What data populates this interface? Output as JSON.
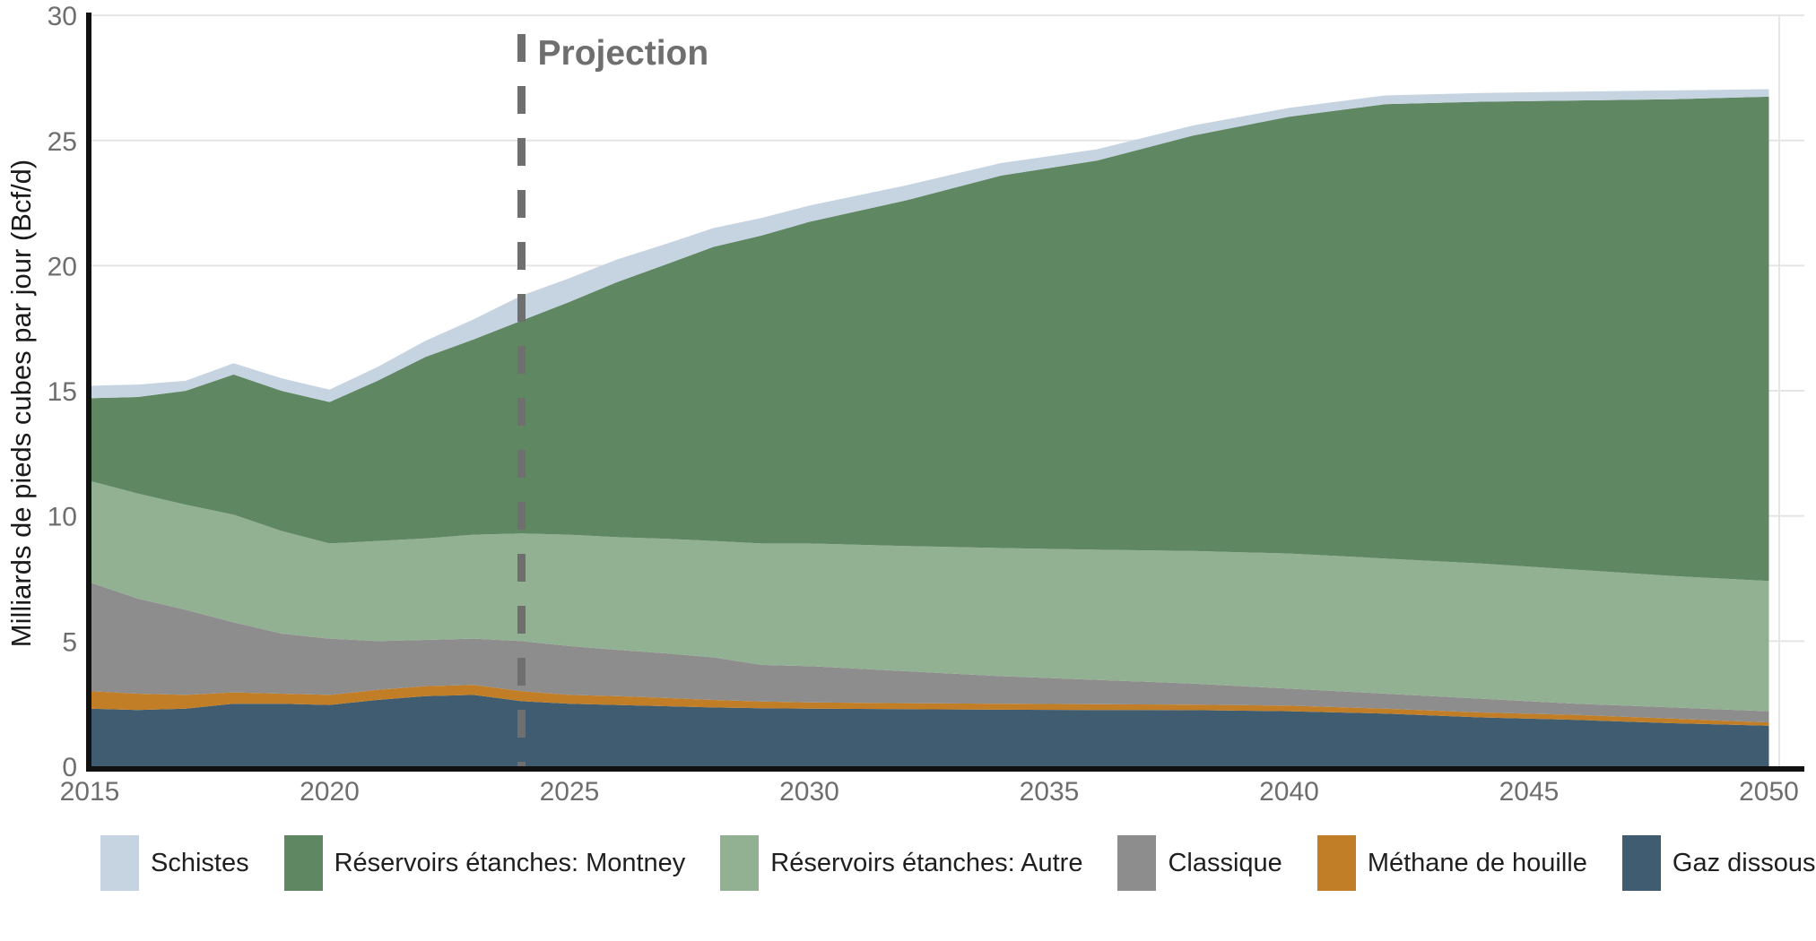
{
  "chart_data": {
    "type": "area",
    "stacked": true,
    "ylabel": "Milliards de pieds cubes par jour (Bcf/d)",
    "ylim": [
      0,
      30
    ],
    "yticks": [
      0,
      5,
      10,
      15,
      20,
      25,
      30
    ],
    "xticks": [
      2015,
      2020,
      2025,
      2030,
      2035,
      2040,
      2045,
      2050
    ],
    "x_range": [
      2015,
      2050
    ],
    "grid": "horizontal-light",
    "legend_position": "bottom",
    "projection_divider": {
      "year": 2024,
      "label": "Projection",
      "color": "#6f6f6f"
    },
    "x": [
      2015,
      2016,
      2017,
      2018,
      2019,
      2020,
      2021,
      2022,
      2023,
      2024,
      2025,
      2026,
      2027,
      2028,
      2029,
      2030,
      2032,
      2034,
      2036,
      2038,
      2040,
      2042,
      2044,
      2046,
      2048,
      2050
    ],
    "series": [
      {
        "name": "Gaz dissous",
        "color": "#3f5c71",
        "values": [
          2.3,
          2.25,
          2.3,
          2.5,
          2.5,
          2.45,
          2.65,
          2.8,
          2.85,
          2.6,
          2.5,
          2.45,
          2.4,
          2.35,
          2.32,
          2.3,
          2.28,
          2.26,
          2.25,
          2.24,
          2.2,
          2.1,
          1.95,
          1.85,
          1.72,
          1.62
        ]
      },
      {
        "name": "Méthane de houille",
        "color": "#c17e26",
        "values": [
          0.7,
          0.65,
          0.55,
          0.45,
          0.4,
          0.4,
          0.4,
          0.4,
          0.4,
          0.4,
          0.35,
          0.35,
          0.33,
          0.3,
          0.27,
          0.25,
          0.24,
          0.24,
          0.23,
          0.22,
          0.22,
          0.2,
          0.2,
          0.2,
          0.18,
          0.13
        ]
      },
      {
        "name": "Classique",
        "color": "#8d8d8d",
        "values": [
          4.35,
          3.8,
          3.4,
          2.8,
          2.4,
          2.25,
          1.95,
          1.85,
          1.85,
          2.0,
          1.95,
          1.85,
          1.78,
          1.7,
          1.46,
          1.45,
          1.28,
          1.1,
          0.97,
          0.84,
          0.68,
          0.6,
          0.55,
          0.45,
          0.45,
          0.45
        ]
      },
      {
        "name": "Réservoirs étanches: Autre",
        "color": "#92b092",
        "values": [
          4.05,
          4.2,
          4.2,
          4.3,
          4.1,
          3.8,
          4.0,
          4.05,
          4.15,
          4.3,
          4.45,
          4.5,
          4.58,
          4.65,
          4.85,
          4.9,
          5.0,
          5.12,
          5.2,
          5.3,
          5.4,
          5.4,
          5.4,
          5.35,
          5.25,
          5.2
        ]
      },
      {
        "name": "Réservoirs étanches: Montney",
        "color": "#5e8762",
        "values": [
          3.3,
          3.85,
          4.55,
          5.6,
          5.6,
          5.65,
          6.4,
          7.25,
          7.8,
          8.5,
          9.3,
          10.2,
          10.95,
          11.75,
          12.3,
          12.85,
          13.8,
          14.88,
          15.55,
          16.6,
          17.45,
          18.15,
          18.45,
          18.75,
          19.05,
          19.35
        ]
      },
      {
        "name": "Schistes",
        "color": "#c6d3e0",
        "values": [
          0.5,
          0.5,
          0.4,
          0.45,
          0.5,
          0.5,
          0.55,
          0.65,
          0.8,
          1.0,
          0.95,
          0.9,
          0.82,
          0.75,
          0.7,
          0.65,
          0.6,
          0.5,
          0.45,
          0.4,
          0.35,
          0.35,
          0.35,
          0.35,
          0.35,
          0.3
        ]
      }
    ],
    "colors": {
      "axis": "#111111",
      "tick_label": "#6e6e6e",
      "gridline": "#e5e5e5",
      "ylabel_text": "#1a1a1a"
    }
  },
  "legend": {
    "items": [
      {
        "label": "Schistes",
        "color": "#c6d3e0"
      },
      {
        "label": "Réservoirs étanches: Montney",
        "color": "#5e8762"
      },
      {
        "label": "Réservoirs étanches: Autre",
        "color": "#92b092"
      },
      {
        "label": "Classique",
        "color": "#8d8d8d"
      },
      {
        "label": "Méthane de houille",
        "color": "#c17e26"
      },
      {
        "label": "Gaz dissous",
        "color": "#3f5c71"
      }
    ]
  }
}
